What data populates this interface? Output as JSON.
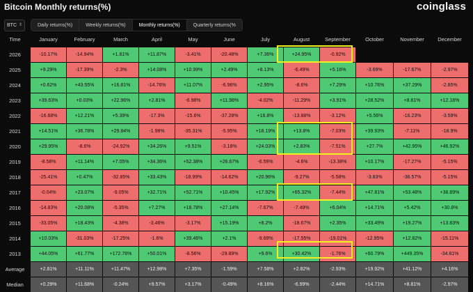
{
  "header": {
    "title": "Bitcoin Monthly returns(%)",
    "logo": "coinglass"
  },
  "controls": {
    "asset": "BTC",
    "tabs": [
      {
        "label": "Daily returns(%)",
        "active": false
      },
      {
        "label": "Weekly returns(%)",
        "active": false
      },
      {
        "label": "Monthly returns(%)",
        "active": true
      },
      {
        "label": "Quarterly returns(%",
        "active": false
      }
    ]
  },
  "table": {
    "columns": [
      "Time",
      "January",
      "February",
      "March",
      "April",
      "May",
      "June",
      "July",
      "August",
      "September",
      "October",
      "November",
      "December"
    ],
    "rows": [
      {
        "label": "2026",
        "values": [
          "-10.17%",
          "-14.94%",
          "+1.81%",
          "+11.87%",
          "-3.41%",
          "-20.48%",
          "+7.36%",
          "+24.95%",
          "-0.92%",
          "",
          "",
          ""
        ]
      },
      {
        "label": "2025",
        "values": [
          "+9.29%",
          "-17.39%",
          "-2.3%",
          "+14.08%",
          "+10.99%",
          "+2.49%",
          "+8.13%",
          "-6.49%",
          "+5.16%",
          "-3.69%",
          "-17.67%",
          "-2.97%"
        ]
      },
      {
        "label": "2024",
        "values": [
          "+0.62%",
          "+43.55%",
          "+16.81%",
          "-14.76%",
          "+11.07%",
          "-6.96%",
          "+2.95%",
          "-8.6%",
          "+7.29%",
          "+10.76%",
          "+37.29%",
          "-2.85%"
        ]
      },
      {
        "label": "2023",
        "values": [
          "+39.63%",
          "+0.03%",
          "+22.96%",
          "+2.81%",
          "-6.98%",
          "+11.98%",
          "-4.02%",
          "-11.29%",
          "+3.91%",
          "+28.52%",
          "+8.81%",
          "+12.18%"
        ]
      },
      {
        "label": "2022",
        "values": [
          "-16.68%",
          "+12.21%",
          "+5.39%",
          "-17.3%",
          "-15.6%",
          "-37.28%",
          "+16.8%",
          "-13.88%",
          "-3.12%",
          "+5.56%",
          "-16.23%",
          "-3.59%"
        ]
      },
      {
        "label": "2021",
        "values": [
          "+14.51%",
          "+36.78%",
          "+29.84%",
          "-1.98%",
          "-35.31%",
          "-5.95%",
          "+18.19%",
          "+13.8%",
          "-7.03%",
          "+39.93%",
          "-7.11%",
          "-18.9%"
        ]
      },
      {
        "label": "2020",
        "values": [
          "+29.95%",
          "-8.6%",
          "-24.92%",
          "+34.26%",
          "+9.51%",
          "-3.18%",
          "+24.03%",
          "+2.83%",
          "-7.51%",
          "+27.7%",
          "+42.95%",
          "+46.92%"
        ]
      },
      {
        "label": "2019",
        "values": [
          "-8.58%",
          "+11.14%",
          "+7.05%",
          "+34.36%",
          "+52.38%",
          "+26.67%",
          "-6.59%",
          "-4.6%",
          "-13.38%",
          "+10.17%",
          "-17.27%",
          "-5.15%"
        ]
      },
      {
        "label": "2018",
        "values": [
          "-25.41%",
          "+0.47%",
          "-32.85%",
          "+33.43%",
          "-18.99%",
          "-14.62%",
          "+20.96%",
          "-9.27%",
          "-5.58%",
          "-3.83%",
          "-36.57%",
          "-5.15%"
        ]
      },
      {
        "label": "2017",
        "values": [
          "-0.04%",
          "+23.07%",
          "-9.05%",
          "+32.71%",
          "+52.71%",
          "+10.45%",
          "+17.92%",
          "+65.32%",
          "-7.44%",
          "+47.81%",
          "+53.48%",
          "+38.89%"
        ]
      },
      {
        "label": "2016",
        "values": [
          "-14.83%",
          "+20.08%",
          "-5.35%",
          "+7.27%",
          "+18.78%",
          "+27.14%",
          "-7.67%",
          "-7.49%",
          "+6.04%",
          "+14.71%",
          "+5.42%",
          "+30.8%"
        ]
      },
      {
        "label": "2015",
        "values": [
          "-33.05%",
          "+18.43%",
          "-4.38%",
          "-3.46%",
          "-3.17%",
          "+15.19%",
          "+8.2%",
          "-18.67%",
          "+2.35%",
          "+33.49%",
          "+19.27%",
          "+13.83%"
        ]
      },
      {
        "label": "2014",
        "values": [
          "+10.03%",
          "-31.03%",
          "-17.25%",
          "-1.6%",
          "+39.46%",
          "+2.1%",
          "-9.69%",
          "-17.55%",
          "-19.01%",
          "-12.95%",
          "+12.82%",
          "-15.11%"
        ]
      },
      {
        "label": "2013",
        "values": [
          "+44.05%",
          "+61.77%",
          "+172.76%",
          "+50.01%",
          "-8.56%",
          "-29.89%",
          "+9.6%",
          "+30.42%",
          "-1.76%",
          "+60.79%",
          "+449.35%",
          "-34.81%"
        ]
      }
    ],
    "summary": [
      {
        "label": "Average",
        "values": [
          "+2.81%",
          "+11.11%",
          "+11.47%",
          "+12.98%",
          "+7.35%",
          "-1.59%",
          "+7.58%",
          "+2.82%",
          "-2.93%",
          "+19.92%",
          "+41.12%",
          "+4.16%"
        ]
      },
      {
        "label": "Median",
        "values": [
          "+0.29%",
          "+11.68%",
          "-0.24%",
          "+9.57%",
          "+3.17%",
          "-0.49%",
          "+8.16%",
          "-6.99%",
          "-2.44%",
          "+14.71%",
          "+8.81%",
          "-2.97%"
        ]
      }
    ]
  },
  "colors": {
    "positive": "#4fc973",
    "negative": "#ee6d6d",
    "summary": "#555555",
    "highlight": "#f4f01f"
  }
}
